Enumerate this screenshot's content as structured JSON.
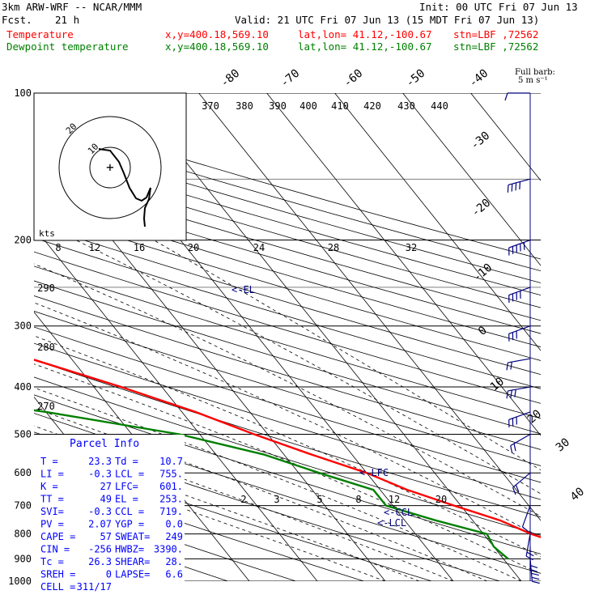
{
  "header": {
    "model": "3km ARW-WRF -- NCAR/MMM",
    "init": "Init: 00 UTC Fri 07 Jun 13",
    "fcst_label": "Fcst.",
    "fcst_value": "21 h",
    "valid": "Valid: 21 UTC Fri 07 Jun 13 (15 MDT Fri 07 Jun 13)",
    "temp_label": "Temperature",
    "dew_label": "Dewpoint temperature",
    "xy": "x,y=400.18,569.10",
    "latlon": "lat,lon= 41.12,-100.67",
    "stn": "stn=LBF ,72562"
  },
  "colors": {
    "temperature": "#ff0000",
    "dewpoint": "#008000",
    "wind": "#000080",
    "parcel": "#0000ff",
    "label_blue": "#000080"
  },
  "wind_legend": {
    "line1": "Full barb:",
    "line2": "5 m s⁻¹"
  },
  "hodograph": {
    "units": "kts",
    "ring_labels": [
      "10",
      "20"
    ]
  },
  "parcel_info": {
    "title": "Parcel Info",
    "rows": [
      [
        "T  =",
        "23.3",
        "Td =",
        "10.7"
      ],
      [
        "LI =",
        "-0.3",
        "LCL =",
        "755."
      ],
      [
        "K  =",
        "27",
        "LFC=",
        "601."
      ],
      [
        "TT =",
        "49",
        "EL =",
        "253."
      ],
      [
        "SVI=",
        "-0.3",
        "CCL =",
        "719."
      ],
      [
        "PV =",
        "2.07",
        "YGP =",
        "0.0"
      ],
      [
        "CAPE =",
        "57",
        "SWEAT=",
        "249"
      ],
      [
        "CIN =",
        "-256",
        "HWBZ=",
        "3390."
      ],
      [
        "Tc =",
        "26.3",
        "SHEAR=",
        "28."
      ],
      [
        "SREH =",
        "0",
        "LAPSE=",
        "6.6"
      ],
      [
        "CELL =",
        "311/17",
        "",
        ""
      ]
    ]
  },
  "level_labels": {
    "el": "<-EL",
    "lfc": "<-LFC",
    "ccl": "<-CCL",
    "lcl": "<-LCL"
  },
  "chart_data": {
    "type": "line",
    "title": "",
    "xlabel": "",
    "ylabel": "",
    "y_scale": "log",
    "ylim": [
      1000,
      100
    ],
    "pressure_ticks": [
      "100",
      "200",
      "300",
      "400",
      "500",
      "600",
      "700",
      "800",
      "900",
      "1000"
    ],
    "isotherm_labels": [
      "-80",
      "-70",
      "-60",
      "-50",
      "-40",
      "-30",
      "-20",
      "-10",
      "0",
      "10",
      "20",
      "30",
      "40"
    ],
    "theta_labels_top": [
      "370",
      "380",
      "390",
      "400",
      "410",
      "420",
      "430",
      "440"
    ],
    "theta_labels_left": [
      "290",
      "280",
      "270"
    ],
    "mixing_ratio_labels_upper": [
      "8",
      "12",
      "16",
      "20",
      "24",
      "28",
      "32"
    ],
    "mixing_ratio_labels_lower": [
      "2",
      "3",
      "5",
      "8",
      "12",
      "20"
    ],
    "series": [
      {
        "name": "Temperature",
        "color": "#ff0000",
        "points": [
          [
            100,
            -56
          ],
          [
            120,
            -60
          ],
          [
            150,
            -56
          ],
          [
            180,
            -54
          ],
          [
            200,
            -54
          ],
          [
            230,
            -55
          ],
          [
            250,
            -54
          ],
          [
            270,
            -50
          ],
          [
            300,
            -46
          ],
          [
            350,
            -36
          ],
          [
            400,
            -26
          ],
          [
            450,
            -18
          ],
          [
            500,
            -12
          ],
          [
            550,
            -6
          ],
          [
            600,
            0
          ],
          [
            650,
            4
          ],
          [
            700,
            9
          ],
          [
            750,
            14
          ],
          [
            800,
            17
          ],
          [
            850,
            21
          ],
          [
            900,
            23.3
          ]
        ]
      },
      {
        "name": "Dewpoint temperature",
        "color": "#008000",
        "points": [
          [
            100,
            -100
          ],
          [
            120,
            -103
          ],
          [
            150,
            -91
          ],
          [
            180,
            -84
          ],
          [
            200,
            -81
          ],
          [
            250,
            -74
          ],
          [
            300,
            -68
          ],
          [
            350,
            -68
          ],
          [
            400,
            -64
          ],
          [
            450,
            -40
          ],
          [
            500,
            -23
          ],
          [
            550,
            -13
          ],
          [
            600,
            -7
          ],
          [
            650,
            -1
          ],
          [
            700,
            -1
          ],
          [
            750,
            4.5
          ],
          [
            800,
            10.5
          ],
          [
            850,
            10
          ],
          [
            900,
            10.7
          ]
        ]
      }
    ],
    "wind_profile": [
      {
        "p": 100,
        "dir": 270,
        "spd": 10
      },
      {
        "p": 150,
        "dir": 255,
        "spd": 35
      },
      {
        "p": 200,
        "dir": 250,
        "spd": 45
      },
      {
        "p": 250,
        "dir": 250,
        "spd": 40
      },
      {
        "p": 300,
        "dir": 250,
        "spd": 30
      },
      {
        "p": 350,
        "dir": 260,
        "spd": 20
      },
      {
        "p": 400,
        "dir": 260,
        "spd": 25
      },
      {
        "p": 450,
        "dir": 250,
        "spd": 25
      },
      {
        "p": 500,
        "dir": 240,
        "spd": 20
      },
      {
        "p": 600,
        "dir": 230,
        "spd": 15
      },
      {
        "p": 700,
        "dir": 200,
        "spd": 10
      },
      {
        "p": 800,
        "dir": 190,
        "spd": 15
      },
      {
        "p": 850,
        "dir": 180,
        "spd": 20
      },
      {
        "p": 900,
        "dir": 175,
        "spd": 25
      }
    ]
  }
}
